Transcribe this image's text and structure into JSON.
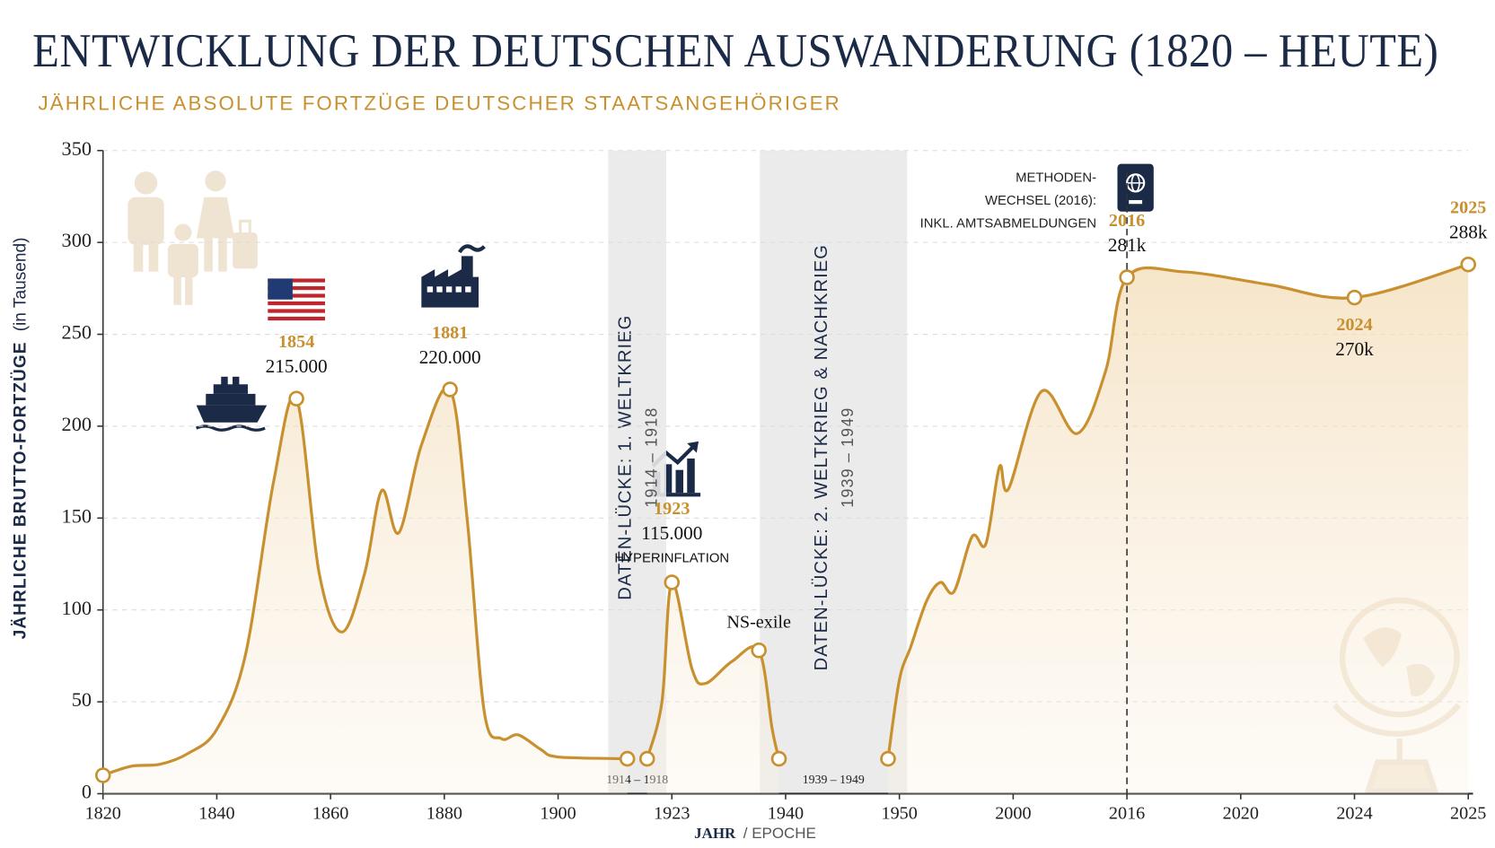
{
  "chart_data": {
    "type": "line",
    "title": "ENTWICKLUNG DER DEUTSCHEN AUSWANDERUNG (1820 – HEUTE)",
    "subtitle": "JÄHRLICHE ABSOLUTE FORTZÜGE DEUTSCHER STAATSANGEHÖRIGER",
    "xlabel": "JAHR",
    "xlabel_suffix": "/ EPOCHE",
    "ylabel": "JÄHRLICHE BRUTTO-FORTZÜGE",
    "ylabel_unit": "(in Tausend)",
    "color": "#c8902e",
    "grid": true,
    "xlim": [
      1820,
      2025
    ],
    "xticks": [
      1820,
      1840,
      1860,
      1880,
      1900,
      1923,
      1940,
      1950,
      2000,
      2016,
      2020,
      2024,
      2025
    ],
    "ylim": [
      0,
      350
    ],
    "yticks": [
      0,
      50,
      100,
      150,
      200,
      250,
      300,
      350
    ],
    "x": [
      1820,
      1825,
      1830,
      1835,
      1840,
      1845,
      1850,
      1854,
      1858,
      1862,
      1866,
      1869,
      1872,
      1876,
      1881,
      1884,
      1887,
      1890,
      1893,
      1897,
      1900,
      1914,
      1916,
      1918,
      1921,
      1923,
      1926,
      1928,
      1932,
      1936,
      1938,
      1939,
      1944,
      1949,
      1950,
      1955,
      1962,
      1968,
      1974,
      1982,
      1988,
      1994,
      1998,
      2004,
      2009,
      2013,
      2016,
      2018,
      2021,
      2024,
      2025
    ],
    "values": [
      10,
      15,
      16,
      22,
      35,
      75,
      170,
      215,
      120,
      88,
      120,
      165,
      142,
      190,
      220,
      150,
      45,
      30,
      32,
      24,
      20,
      19,
      null,
      19,
      50,
      115,
      68,
      60,
      72,
      78,
      35,
      19,
      null,
      19,
      62,
      80,
      105,
      115,
      110,
      140,
      136,
      178,
      166,
      219,
      196,
      230,
      281,
      284,
      277,
      270,
      288
    ],
    "value_labels": [
      null,
      null,
      null,
      null,
      null,
      null,
      null,
      "215.000",
      null,
      null,
      null,
      null,
      null,
      null,
      "220.000",
      null,
      null,
      null,
      null,
      null,
      null,
      null,
      null,
      null,
      null,
      "115.000",
      null,
      null,
      null,
      null,
      null,
      null,
      null,
      null,
      null,
      null,
      null,
      null,
      null,
      null,
      null,
      null,
      null,
      null,
      null,
      null,
      "281k",
      null,
      null,
      "270k",
      "288k"
    ],
    "notes": [
      null,
      null,
      null,
      null,
      null,
      null,
      null,
      null,
      null,
      null,
      null,
      null,
      null,
      null,
      null,
      null,
      null,
      null,
      null,
      null,
      null,
      null,
      null,
      null,
      null,
      "HYPERINFLATION",
      null,
      null,
      null,
      "NS-exile",
      null,
      null,
      null,
      null,
      null,
      null,
      null,
      null,
      null,
      null,
      null,
      null,
      null,
      null,
      null,
      null,
      null,
      null,
      null,
      null,
      null
    ],
    "gaps": [
      {
        "label": "DATEN-LÜCKE: 1. WELTKRIEG",
        "range_label": "1914 – 1918",
        "start": 1914,
        "end": 1918
      },
      {
        "label": "DATEN-LÜCKE: 2. WELTKRIEG & NACHKRIEG",
        "range_label": "1939 – 1949",
        "start": 1939,
        "end": 1949
      }
    ],
    "method_change": {
      "x": 2016,
      "lines": [
        "METHODEN-",
        "WECHSEL (2016):",
        "INKL. AMTSABMELDUNGEN"
      ]
    }
  }
}
